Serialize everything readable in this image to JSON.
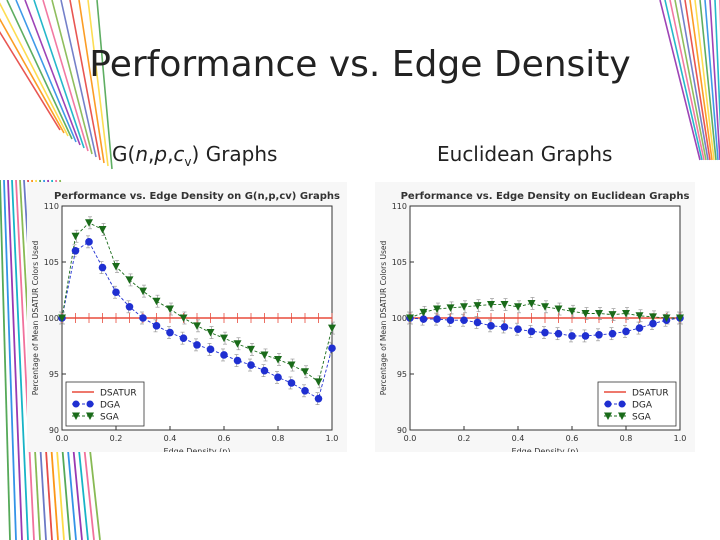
{
  "slide": {
    "title": "Performance vs. Edge Density",
    "subtitle_left": "G(n,p,c) Graphs",
    "subtitle_right": "Euclidean Graphs"
  },
  "colors": {
    "dsatur": "#e84b3c",
    "dga": "#1f2fd1",
    "sga": "#1a6b1a",
    "errorbar": "#999999"
  },
  "chart_data": [
    {
      "type": "scatter",
      "title": "Performance vs. Edge Density on G(n,p,cv) Graphs",
      "xlabel": "Edge Density (p)",
      "ylabel": "Percentage of Mean DSATUR Colors Used",
      "xlim": [
        0.0,
        1.0
      ],
      "ylim": [
        90,
        110
      ],
      "xticks": [
        "0.0",
        "0.2",
        "0.4",
        "0.6",
        "0.8",
        "1.0"
      ],
      "yticks": [
        "90",
        "95",
        "100",
        "105",
        "110"
      ],
      "legend": {
        "position": "bottom-left",
        "entries": [
          "DSATUR",
          "DGA",
          "SGA"
        ]
      },
      "x": [
        0.0,
        0.05,
        0.1,
        0.15,
        0.2,
        0.25,
        0.3,
        0.35,
        0.4,
        0.45,
        0.5,
        0.55,
        0.6,
        0.65,
        0.7,
        0.75,
        0.8,
        0.85,
        0.9,
        0.95,
        1.0
      ],
      "series": [
        {
          "name": "DSATUR",
          "values": [
            100,
            100,
            100,
            100,
            100,
            100,
            100,
            100,
            100,
            100,
            100,
            100,
            100,
            100,
            100,
            100,
            100,
            100,
            100,
            100,
            100
          ]
        },
        {
          "name": "DGA",
          "values": [
            100.0,
            106.0,
            106.8,
            104.5,
            102.3,
            101.0,
            100.0,
            99.3,
            98.7,
            98.2,
            97.6,
            97.2,
            96.7,
            96.2,
            95.8,
            95.3,
            94.7,
            94.2,
            93.5,
            92.8,
            97.3
          ]
        },
        {
          "name": "SGA",
          "values": [
            100.0,
            107.3,
            108.5,
            107.9,
            104.6,
            103.4,
            102.4,
            101.5,
            100.8,
            100.0,
            99.3,
            98.7,
            98.2,
            97.7,
            97.2,
            96.7,
            96.3,
            95.8,
            95.2,
            94.3,
            99.1
          ]
        }
      ]
    },
    {
      "type": "scatter",
      "title": "Performance vs. Edge Density on Euclidean Graphs",
      "xlabel": "Edge Density (p)",
      "ylabel": "Percentage of Mean DSATUR Colors Used",
      "xlim": [
        0.0,
        1.0
      ],
      "ylim": [
        90,
        110
      ],
      "xticks": [
        "0.0",
        "0.2",
        "0.4",
        "0.6",
        "0.8",
        "1.0"
      ],
      "yticks": [
        "90",
        "95",
        "100",
        "105",
        "110"
      ],
      "legend": {
        "position": "bottom-right",
        "entries": [
          "DSATUR",
          "DGA",
          "SGA"
        ]
      },
      "x": [
        0.0,
        0.05,
        0.1,
        0.15,
        0.2,
        0.25,
        0.3,
        0.35,
        0.4,
        0.45,
        0.5,
        0.55,
        0.6,
        0.65,
        0.7,
        0.75,
        0.8,
        0.85,
        0.9,
        0.95,
        1.0
      ],
      "series": [
        {
          "name": "DSATUR",
          "values": [
            100,
            100,
            100,
            100,
            100,
            100,
            100,
            100,
            100,
            100,
            100,
            100,
            100,
            100,
            100,
            100,
            100,
            100,
            100,
            100,
            100
          ]
        },
        {
          "name": "DGA",
          "values": [
            100.0,
            99.9,
            99.9,
            99.8,
            99.8,
            99.6,
            99.3,
            99.2,
            99.0,
            98.8,
            98.7,
            98.6,
            98.4,
            98.4,
            98.5,
            98.6,
            98.8,
            99.1,
            99.5,
            99.8,
            100.0
          ]
        },
        {
          "name": "SGA",
          "values": [
            100.0,
            100.5,
            100.8,
            100.9,
            101.0,
            101.1,
            101.2,
            101.2,
            101.0,
            101.3,
            101.0,
            100.8,
            100.6,
            100.4,
            100.4,
            100.3,
            100.4,
            100.2,
            100.1,
            100.0,
            100.0
          ]
        }
      ]
    }
  ]
}
